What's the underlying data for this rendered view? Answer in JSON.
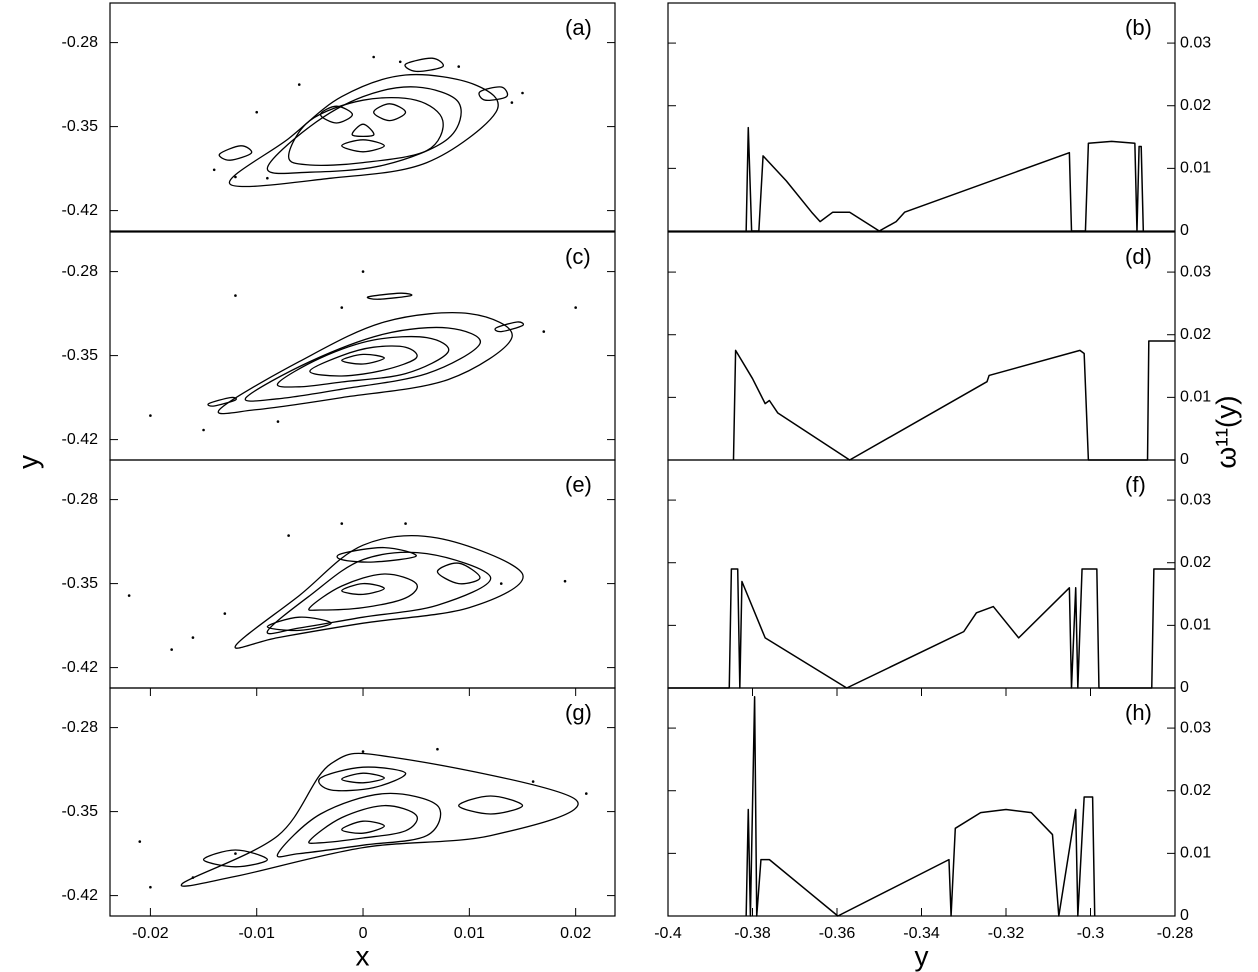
{
  "chart_data": [
    {
      "type": "poincare",
      "label": "(a)",
      "xlim": [
        -0.0238,
        0.0237
      ],
      "ylim": [
        -0.437,
        -0.247
      ],
      "yticks": [
        -0.42,
        -0.35,
        -0.28
      ],
      "curves": [
        {
          "x": [
            -0.0125,
            -0.007,
            -0.002,
            0.004,
            0.0105,
            0.0125,
            0.006,
            -0.003
          ],
          "y": [
            -0.398,
            -0.36,
            -0.325,
            -0.307,
            -0.315,
            -0.338,
            -0.38,
            -0.393
          ]
        },
        {
          "x": [
            -0.009,
            -0.005,
            0.0,
            0.005,
            0.009,
            0.008,
            0.002,
            -0.005
          ],
          "y": [
            -0.385,
            -0.35,
            -0.325,
            -0.317,
            -0.33,
            -0.36,
            -0.382,
            -0.388
          ]
        },
        {
          "x": [
            -0.007,
            -0.005,
            0.0,
            0.005,
            0.0075,
            0.006,
            0.0,
            -0.005
          ],
          "y": [
            -0.375,
            -0.345,
            -0.328,
            -0.328,
            -0.345,
            -0.37,
            -0.38,
            -0.382
          ]
        },
        {
          "x": [
            -0.004,
            -0.0025,
            -0.001,
            -0.0025
          ],
          "y": [
            -0.34,
            -0.333,
            -0.34,
            -0.347
          ]
        },
        {
          "x": [
            0.001,
            0.0025,
            0.004,
            0.0025
          ],
          "y": [
            -0.338,
            -0.331,
            -0.338,
            -0.345
          ]
        },
        {
          "x": [
            -0.002,
            0.0,
            0.002,
            0.0
          ],
          "y": [
            -0.366,
            -0.361,
            -0.366,
            -0.371
          ]
        },
        {
          "x": [
            -0.001,
            0.0,
            0.001
          ],
          "y": [
            -0.357,
            -0.348,
            -0.357
          ]
        },
        {
          "x": [
            -0.0135,
            -0.0115,
            -0.0105,
            -0.0125
          ],
          "y": [
            -0.373,
            -0.366,
            -0.372,
            -0.378
          ]
        },
        {
          "x": [
            0.004,
            0.0065,
            0.0075,
            0.005
          ],
          "y": [
            -0.298,
            -0.293,
            -0.3,
            -0.304
          ]
        },
        {
          "x": [
            0.011,
            0.013,
            0.0135,
            0.0115
          ],
          "y": [
            -0.321,
            -0.317,
            -0.325,
            -0.328
          ]
        }
      ],
      "points": {
        "x": [
          -0.014,
          -0.012,
          -0.006,
          0.001,
          0.009,
          0.014,
          -0.01,
          0.0035,
          -0.009,
          0.015
        ],
        "y": [
          -0.386,
          -0.392,
          -0.315,
          -0.292,
          -0.3,
          -0.33,
          -0.338,
          -0.296,
          -0.393,
          -0.322
        ]
      }
    },
    {
      "type": "line",
      "label": "(b)",
      "xlim": [
        -0.4,
        -0.28
      ],
      "ylim": [
        0,
        0.0364
      ],
      "yticks": [
        0,
        0.01,
        0.02,
        0.03
      ],
      "x": [
        -0.3815,
        -0.381,
        -0.3802,
        -0.3785,
        -0.3775,
        -0.372,
        -0.366,
        -0.364,
        -0.361,
        -0.357,
        -0.35,
        -0.346,
        -0.344,
        -0.305,
        -0.3045,
        -0.3012,
        -0.3005,
        -0.295,
        -0.2895,
        -0.289,
        -0.2885,
        -0.288,
        -0.2875
      ],
      "values": [
        0,
        0.0165,
        0,
        0,
        0.012,
        0.008,
        0.003,
        0.0015,
        0.003,
        0.003,
        0,
        0.0015,
        0.003,
        0.0125,
        0,
        0,
        0.014,
        0.0143,
        0.014,
        0,
        0.0135,
        0.0135,
        0
      ]
    },
    {
      "type": "poincare",
      "label": "(c)",
      "ylabel": "y",
      "xlim": [
        -0.0238,
        0.0237
      ],
      "ylim": [
        -0.437,
        -0.247
      ],
      "yticks": [
        -0.42,
        -0.35,
        -0.28
      ],
      "curves": [
        {
          "x": [
            -0.0135,
            -0.006,
            0.002,
            0.01,
            0.014,
            0.008,
            -0.002,
            -0.01
          ],
          "y": [
            -0.395,
            -0.355,
            -0.322,
            -0.315,
            -0.335,
            -0.37,
            -0.385,
            -0.395
          ]
        },
        {
          "x": [
            -0.011,
            -0.005,
            0.002,
            0.008,
            0.011,
            0.006,
            -0.002,
            -0.008
          ],
          "y": [
            -0.385,
            -0.355,
            -0.332,
            -0.327,
            -0.34,
            -0.365,
            -0.378,
            -0.386
          ]
        },
        {
          "x": [
            -0.008,
            -0.004,
            0.001,
            0.006,
            0.008,
            0.004,
            -0.002,
            -0.006
          ],
          "y": [
            -0.373,
            -0.352,
            -0.337,
            -0.335,
            -0.347,
            -0.365,
            -0.372,
            -0.376
          ]
        },
        {
          "x": [
            -0.005,
            -0.002,
            0.001,
            0.004,
            0.005,
            0.002,
            -0.002
          ],
          "y": [
            -0.363,
            -0.35,
            -0.343,
            -0.343,
            -0.352,
            -0.362,
            -0.367
          ]
        },
        {
          "x": [
            -0.002,
            0.0,
            0.002,
            0.0
          ],
          "y": [
            -0.354,
            -0.349,
            -0.352,
            -0.357
          ]
        },
        {
          "x": [
            0.0005,
            0.0035,
            0.0045,
            0.0015
          ],
          "y": [
            -0.301,
            -0.298,
            -0.3,
            -0.303
          ]
        },
        {
          "x": [
            -0.0145,
            -0.0125,
            -0.012,
            -0.014
          ],
          "y": [
            -0.39,
            -0.385,
            -0.387,
            -0.392
          ]
        },
        {
          "x": [
            0.0125,
            0.0145,
            0.015,
            0.013
          ],
          "y": [
            -0.327,
            -0.322,
            -0.325,
            -0.33
          ]
        }
      ],
      "points": {
        "x": [
          -0.015,
          -0.008,
          -0.002,
          0.0,
          0.017,
          0.02,
          -0.02,
          -0.012
        ],
        "y": [
          -0.412,
          -0.405,
          -0.31,
          -0.28,
          -0.33,
          -0.31,
          -0.4,
          -0.3
        ]
      }
    },
    {
      "type": "line",
      "label": "(d)",
      "ylabel": "ω¹¹(y)",
      "xlim": [
        -0.4,
        -0.28
      ],
      "ylim": [
        0,
        0.0364
      ],
      "yticks": [
        0,
        0.01,
        0.02,
        0.03
      ],
      "x": [
        -0.3845,
        -0.384,
        -0.38,
        -0.377,
        -0.376,
        -0.374,
        -0.357,
        -0.3245,
        -0.324,
        -0.3025,
        -0.3015,
        -0.3005,
        -0.2865,
        -0.2862,
        -0.28
      ],
      "values": [
        0,
        0.0175,
        0.013,
        0.009,
        0.0095,
        0.0075,
        0,
        0.0125,
        0.0135,
        0.0175,
        0.017,
        0,
        0,
        0.019,
        0.019
      ]
    },
    {
      "type": "poincare",
      "label": "(e)",
      "xlim": [
        -0.0238,
        0.0237
      ],
      "ylim": [
        -0.437,
        -0.247
      ],
      "yticks": [
        -0.42,
        -0.35,
        -0.28
      ],
      "curves": [
        {
          "x": [
            -0.012,
            -0.006,
            0.0,
            0.007,
            0.015,
            0.01,
            0.0,
            -0.008
          ],
          "y": [
            -0.402,
            -0.36,
            -0.318,
            -0.312,
            -0.342,
            -0.37,
            -0.383,
            -0.395
          ]
        },
        {
          "x": [
            -0.009,
            -0.005,
            0.0,
            0.006,
            0.012,
            0.007,
            0.0,
            -0.006
          ],
          "y": [
            -0.39,
            -0.36,
            -0.33,
            -0.325,
            -0.345,
            -0.368,
            -0.378,
            -0.387
          ]
        },
        {
          "x": [
            -0.005,
            -0.002,
            0.002,
            0.005,
            0.004,
            0.0,
            -0.004
          ],
          "y": [
            -0.37,
            -0.352,
            -0.342,
            -0.35,
            -0.362,
            -0.37,
            -0.372
          ]
        },
        {
          "x": [
            -0.002,
            0.0,
            0.002,
            0.0
          ],
          "y": [
            -0.356,
            -0.35,
            -0.354,
            -0.359
          ]
        },
        {
          "x": [
            -0.002,
            0.002,
            0.005,
            0.001,
            -0.002
          ],
          "y": [
            -0.325,
            -0.32,
            -0.327,
            -0.332,
            -0.33
          ]
        },
        {
          "x": [
            -0.009,
            -0.006,
            -0.003,
            -0.006
          ],
          "y": [
            -0.386,
            -0.378,
            -0.383,
            -0.389
          ]
        },
        {
          "x": [
            0.007,
            0.009,
            0.011,
            0.009
          ],
          "y": [
            -0.34,
            -0.333,
            -0.345,
            -0.35
          ]
        }
      ],
      "points": {
        "x": [
          -0.018,
          -0.013,
          -0.007,
          -0.002,
          0.004,
          0.013,
          0.019,
          -0.022,
          -0.016
        ],
        "y": [
          -0.405,
          -0.375,
          -0.31,
          -0.3,
          -0.3,
          -0.35,
          -0.348,
          -0.36,
          -0.395
        ]
      }
    },
    {
      "type": "line",
      "label": "(f)",
      "xlim": [
        -0.4,
        -0.28
      ],
      "ylim": [
        0,
        0.0364
      ],
      "yticks": [
        0,
        0.01,
        0.02,
        0.03
      ],
      "x": [
        -0.4,
        -0.3855,
        -0.385,
        -0.3835,
        -0.383,
        -0.3825,
        -0.377,
        -0.3577,
        -0.33,
        -0.327,
        -0.323,
        -0.317,
        -0.305,
        -0.3045,
        -0.3035,
        -0.303,
        -0.302,
        -0.2985,
        -0.298,
        -0.2855,
        -0.285,
        -0.28
      ],
      "values": [
        0,
        0,
        0.019,
        0.019,
        0,
        0.017,
        0.008,
        0,
        0.009,
        0.012,
        0.013,
        0.008,
        0.016,
        0,
        0.016,
        0,
        0.019,
        0.019,
        0,
        0,
        0.019,
        0.019
      ]
    },
    {
      "type": "poincare",
      "label": "(g)",
      "xlabel": "x",
      "xlim": [
        -0.0238,
        0.0237
      ],
      "ylim": [
        -0.437,
        -0.247
      ],
      "yticks": [
        -0.42,
        -0.35,
        -0.28
      ],
      "xticks": [
        -0.02,
        -0.01,
        0,
        0.01,
        0.02
      ],
      "curves": [
        {
          "x": [
            -0.017,
            -0.008,
            -0.003,
            0.003,
            0.02,
            0.012,
            0.0,
            -0.012
          ],
          "y": [
            -0.41,
            -0.37,
            -0.31,
            -0.305,
            -0.34,
            -0.37,
            -0.38,
            -0.404
          ]
        },
        {
          "x": [
            -0.008,
            -0.004,
            0.002,
            0.007,
            0.006,
            0.0,
            -0.006
          ],
          "y": [
            -0.385,
            -0.352,
            -0.335,
            -0.345,
            -0.37,
            -0.378,
            -0.385
          ]
        },
        {
          "x": [
            -0.005,
            -0.002,
            0.002,
            0.005,
            0.004,
            0.0,
            -0.004
          ],
          "y": [
            -0.374,
            -0.355,
            -0.345,
            -0.353,
            -0.366,
            -0.372,
            -0.376
          ]
        },
        {
          "x": [
            -0.002,
            0.0,
            0.002,
            0.0
          ],
          "y": [
            -0.365,
            -0.358,
            -0.362,
            -0.368
          ]
        },
        {
          "x": [
            -0.004,
            0.0,
            0.004,
            0.001,
            -0.003
          ],
          "y": [
            -0.322,
            -0.313,
            -0.318,
            -0.33,
            -0.332
          ]
        },
        {
          "x": [
            -0.002,
            0.0,
            0.002,
            0.0
          ],
          "y": [
            -0.323,
            -0.318,
            -0.322,
            -0.326
          ]
        },
        {
          "x": [
            0.009,
            0.012,
            0.015,
            0.012
          ],
          "y": [
            -0.345,
            -0.337,
            -0.345,
            -0.352
          ]
        },
        {
          "x": [
            -0.015,
            -0.012,
            -0.009,
            -0.012
          ],
          "y": [
            -0.39,
            -0.382,
            -0.39,
            -0.396
          ]
        }
      ],
      "points": {
        "x": [
          -0.02,
          -0.016,
          -0.012,
          0.0,
          0.007,
          0.016,
          0.021,
          -0.021
        ],
        "y": [
          -0.413,
          -0.405,
          -0.385,
          -0.3,
          -0.298,
          -0.325,
          -0.335,
          -0.375
        ]
      }
    },
    {
      "type": "line",
      "label": "(h)",
      "xlabel": "y",
      "xlim": [
        -0.4,
        -0.28
      ],
      "ylim": [
        0,
        0.0364
      ],
      "yticks": [
        0,
        0.01,
        0.02,
        0.03
      ],
      "xticks": [
        -0.4,
        -0.38,
        -0.36,
        -0.34,
        -0.32,
        -0.3,
        -0.28
      ],
      "x": [
        -0.3815,
        -0.381,
        -0.3805,
        -0.3795,
        -0.379,
        -0.378,
        -0.376,
        -0.3598,
        -0.3335,
        -0.333,
        -0.332,
        -0.326,
        -0.32,
        -0.314,
        -0.309,
        -0.3075,
        -0.3035,
        -0.303,
        -0.3015,
        -0.2995,
        -0.299
      ],
      "values": [
        0,
        0.017,
        0,
        0.035,
        0,
        0.009,
        0.009,
        0,
        0.009,
        0,
        0.014,
        0.0165,
        0.017,
        0.0165,
        0.013,
        0,
        0.017,
        0,
        0.019,
        0.019,
        0
      ]
    }
  ]
}
